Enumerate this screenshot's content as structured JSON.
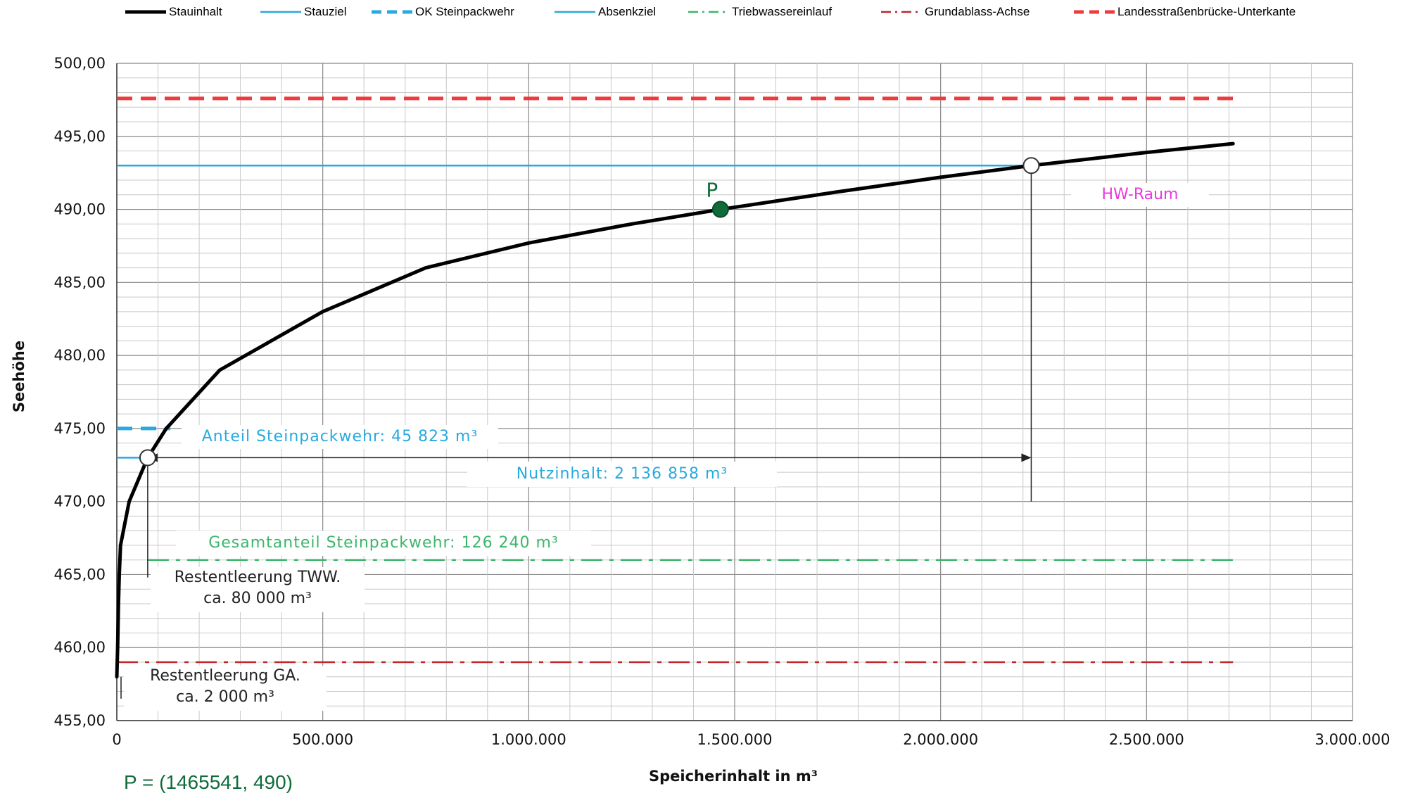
{
  "chart_data": {
    "type": "line",
    "xlabel": "Speicherinhalt in m³",
    "ylabel": "Seehöhe",
    "xlim": [
      0,
      3000000
    ],
    "ylim": [
      455,
      500
    ],
    "x_tick_labels": [
      "0",
      "500.000",
      "1.000.000",
      "1.500.000",
      "2.000.000",
      "2.500.000",
      "3.000.000"
    ],
    "y_tick_labels": [
      "455,00",
      "460,00",
      "465,00",
      "470,00",
      "475,00",
      "480,00",
      "485,00",
      "490,00",
      "495,00",
      "500,00"
    ],
    "grid": true,
    "legend_position": "top",
    "series": [
      {
        "name": "Stauinhalt",
        "color": "#000000",
        "style": "solid",
        "points": [
          [
            0,
            458
          ],
          [
            2000,
            460
          ],
          [
            4000,
            463
          ],
          [
            6000,
            465
          ],
          [
            9000,
            467
          ],
          [
            30000,
            470
          ],
          [
            75000,
            473
          ],
          [
            120000,
            475
          ],
          [
            250000,
            479
          ],
          [
            500000,
            483
          ],
          [
            750000,
            486
          ],
          [
            1000000,
            487.7
          ],
          [
            1250000,
            489
          ],
          [
            1465541,
            490
          ],
          [
            1750000,
            491.2
          ],
          [
            2000000,
            492.2
          ],
          [
            2220000,
            493
          ],
          [
            2500000,
            493.9
          ],
          [
            2710000,
            494.5
          ]
        ]
      },
      {
        "name": "Stauziel",
        "color": "#29a9df",
        "style": "solid",
        "y": 493,
        "x_range": [
          0,
          2220000
        ]
      },
      {
        "name": "OK Steinpackwehr",
        "color": "#29a9df",
        "style": "dashed",
        "y": 475,
        "x_range": [
          0,
          130000
        ]
      },
      {
        "name": "Absenkziel",
        "color": "#29a9df",
        "style": "solid",
        "y": 473,
        "x_range": [
          0,
          75000
        ]
      },
      {
        "name": "Triebwassereinlauf",
        "color": "#3cb66a",
        "style": "dashdot",
        "y": 466,
        "x_range": [
          75000,
          2710000
        ]
      },
      {
        "name": "Grundablass-Achse",
        "color": "#c0272d",
        "style": "dashdot",
        "y": 459,
        "x_range": [
          0,
          2710000
        ]
      },
      {
        "name": "Landesstraßenbrücke-Unterkante",
        "color": "#ee3b3b",
        "style": "dashed",
        "y": 497.6,
        "x_range": [
          0,
          2710000
        ]
      }
    ],
    "markers": [
      {
        "label": "P",
        "x": 1465541,
        "y": 490,
        "fill": "#0f6b3a"
      },
      {
        "label": "",
        "x": 75000,
        "y": 473,
        "fill": "#ffffff"
      },
      {
        "label": "",
        "x": 2220000,
        "y": 493,
        "fill": "#ffffff"
      }
    ],
    "point_caption": "P = (1465541, 490)",
    "annotations": {
      "hw_raum": "HW-Raum",
      "anteil_steinpackwehr": "Anteil Steinpackwehr: 45 823 m³",
      "nutzinhalt": "Nutzinhalt: 2 136 858 m³",
      "gesamtanteil": "Gesamtanteil Steinpackwehr: 126 240 m³",
      "restentleerung_tww_1": "Restentleerung TWW.",
      "restentleerung_tww_2": "ca. 80 000 m³",
      "restentleerung_ga_1": "Restentleerung GA.",
      "restentleerung_ga_2": "ca. 2 000 m³"
    },
    "annotation_colors": {
      "hw_raum": "#e83adf",
      "blue": "#29a9df",
      "green": "#3cb66a",
      "dark_green": "#0f6b3a",
      "text": "#222222"
    }
  }
}
